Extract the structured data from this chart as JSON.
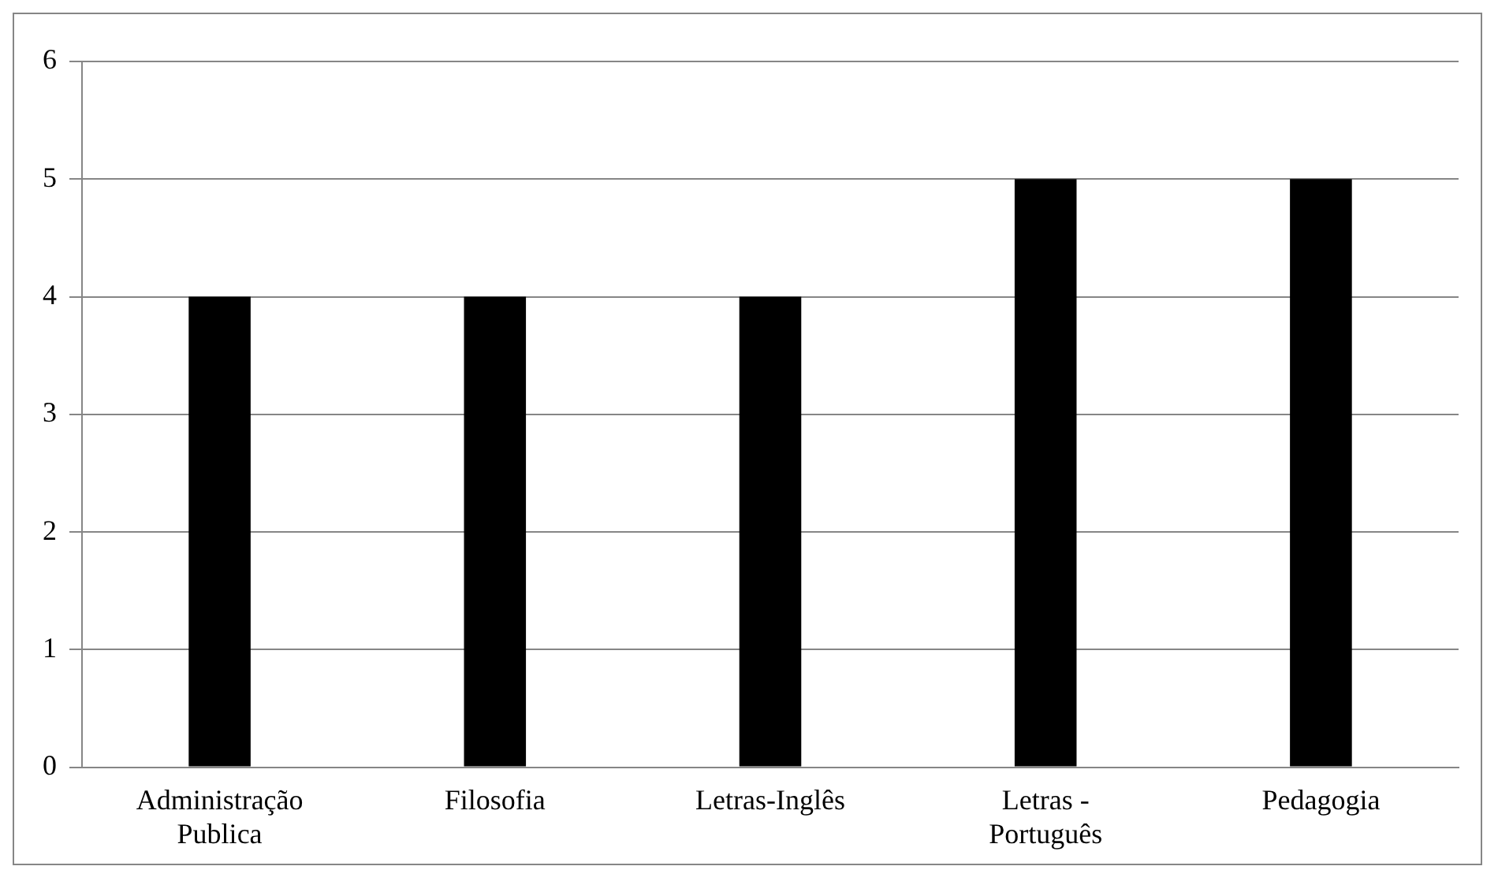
{
  "chart_data": {
    "type": "bar",
    "categories": [
      "Administração Publica",
      "Filosofia",
      "Letras-Inglês",
      "Letras - Português",
      "Pedagogia"
    ],
    "values": [
      4,
      4,
      4,
      5,
      5
    ],
    "color": "#000000",
    "ylim": [
      0,
      6
    ],
    "yticks": [
      0,
      1,
      2,
      3,
      4,
      5,
      6
    ],
    "grid": "y",
    "legend": false
  }
}
